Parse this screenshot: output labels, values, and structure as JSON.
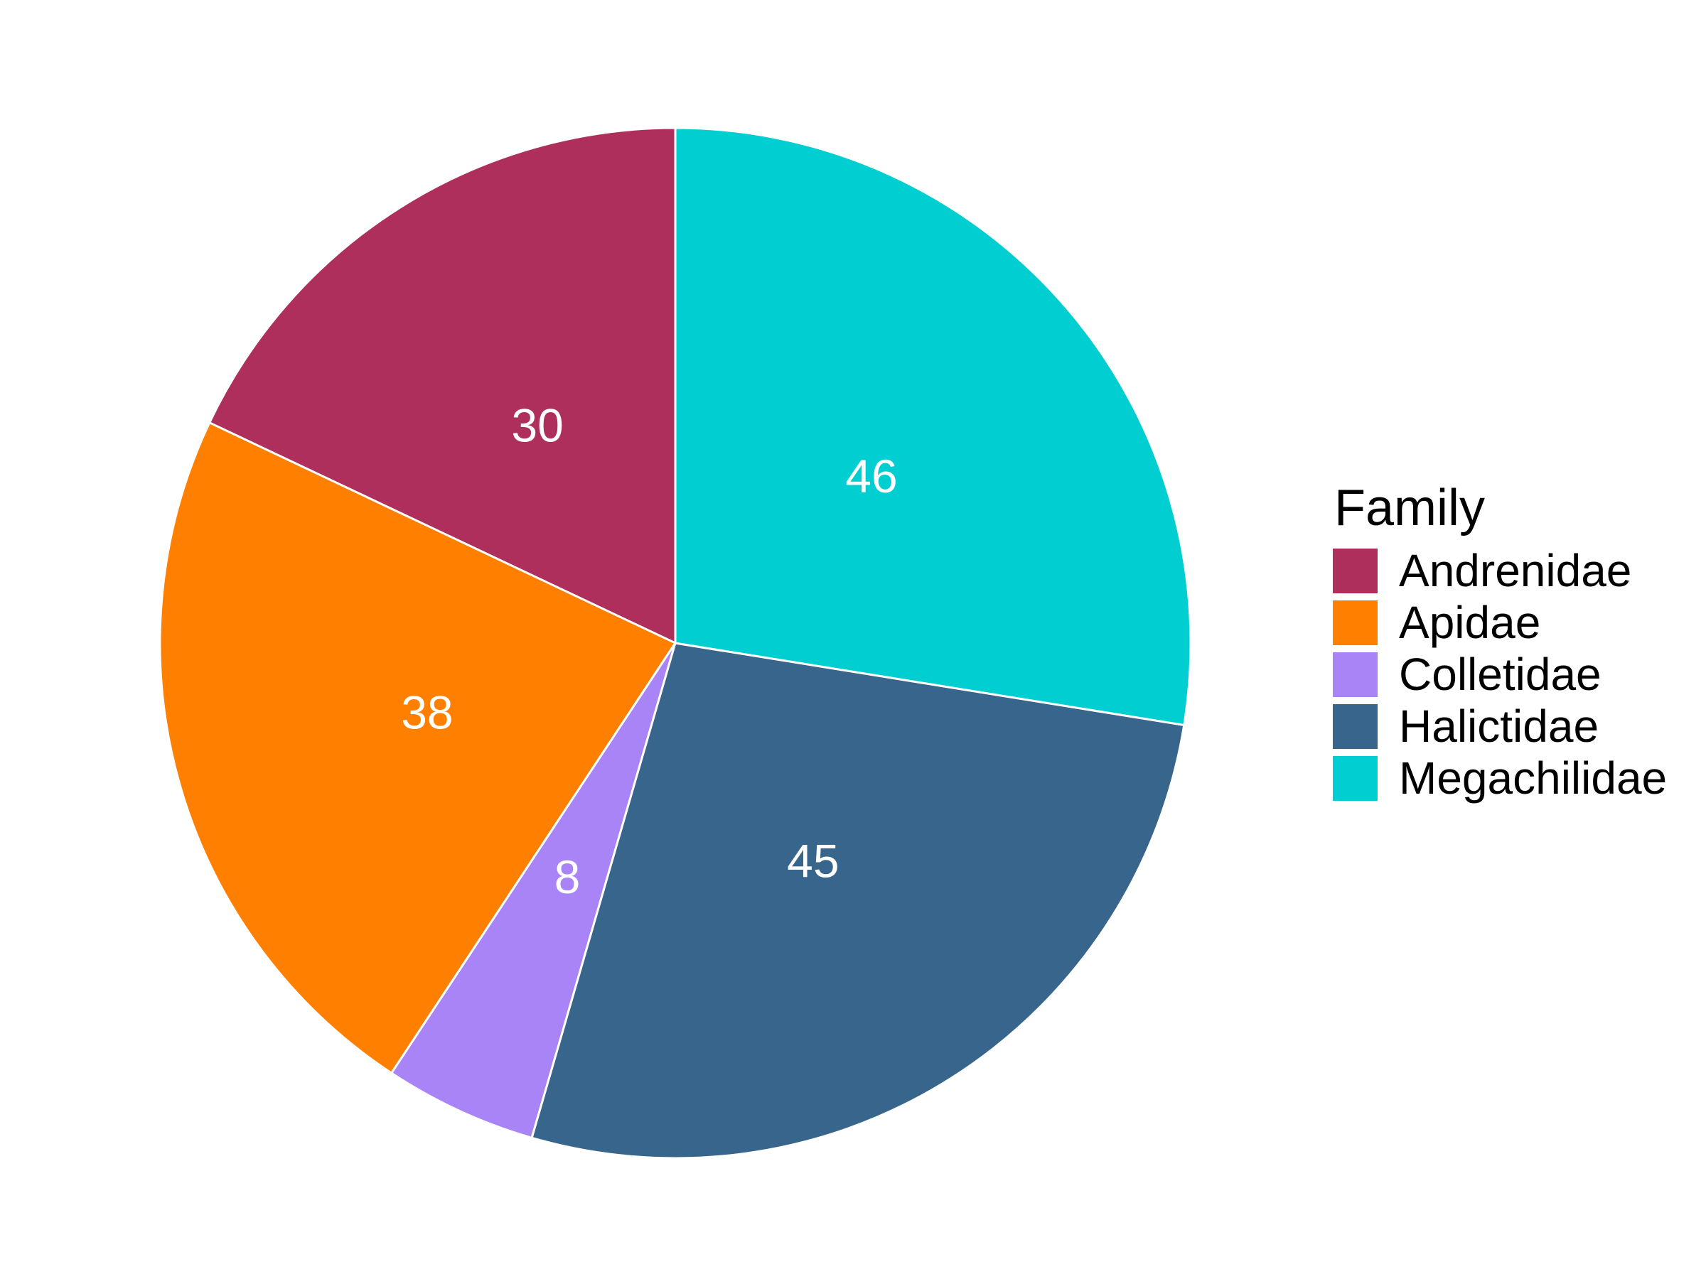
{
  "chart_data": {
    "type": "pie",
    "title": "",
    "categories": [
      "Andrenidae",
      "Apidae",
      "Colletidae",
      "Halictidae",
      "Megachilidae"
    ],
    "values": [
      30,
      38,
      8,
      45,
      46
    ],
    "colors": [
      "#AE2F5C",
      "#FF7F00",
      "#A884F7",
      "#38658B",
      "#00CED1"
    ],
    "data_labels": [
      "30",
      "38",
      "8",
      "45",
      "46"
    ],
    "legend": {
      "title": "Family",
      "position": "right"
    },
    "start": "12 o'clock",
    "direction": "counterclockwise"
  }
}
